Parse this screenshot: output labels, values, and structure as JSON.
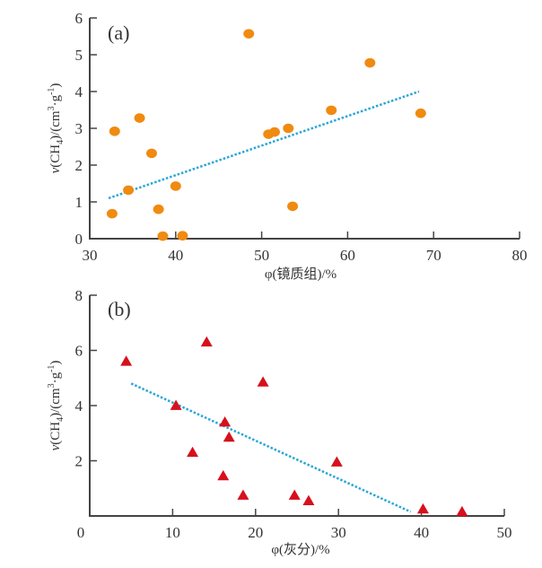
{
  "chart_data": [
    {
      "type": "scatter",
      "panel_label": "(a)",
      "xlabel": "φ(镜质组)/%",
      "ylabel": "v(CH4)/(cm3·g-1)",
      "ylabel_parts": {
        "v": "v",
        "open": "(CH",
        "sub": "4",
        "mid": ")/(cm",
        "sup1": "3",
        "dot": "·g",
        "sup2": "-1",
        "close": ")"
      },
      "xlim": [
        30,
        80
      ],
      "ylim": [
        0,
        6
      ],
      "xticks": [
        30,
        40,
        50,
        60,
        70,
        80
      ],
      "yticks": [
        0,
        1,
        2,
        3,
        4,
        5,
        6
      ],
      "grid": false,
      "marker": "circle",
      "marker_color": "#f08a10",
      "trend_color": "#2aa6d8",
      "points": [
        {
          "x": 32.6,
          "y": 0.68
        },
        {
          "x": 32.9,
          "y": 2.92
        },
        {
          "x": 34.5,
          "y": 1.32
        },
        {
          "x": 35.8,
          "y": 3.28
        },
        {
          "x": 37.2,
          "y": 2.32
        },
        {
          "x": 38.0,
          "y": 0.8
        },
        {
          "x": 38.5,
          "y": 0.07
        },
        {
          "x": 40.0,
          "y": 1.43
        },
        {
          "x": 40.8,
          "y": 0.08
        },
        {
          "x": 48.5,
          "y": 5.57
        },
        {
          "x": 50.8,
          "y": 2.84
        },
        {
          "x": 51.5,
          "y": 2.9
        },
        {
          "x": 53.1,
          "y": 3.0
        },
        {
          "x": 53.6,
          "y": 0.88
        },
        {
          "x": 58.1,
          "y": 3.49
        },
        {
          "x": 62.6,
          "y": 4.78
        },
        {
          "x": 68.5,
          "y": 3.41
        }
      ],
      "trendline": {
        "x": [
          32.2,
          68.3
        ],
        "y": [
          1.1,
          4.0
        ]
      }
    },
    {
      "type": "scatter",
      "panel_label": "(b)",
      "xlabel": "φ(灰分)/%",
      "ylabel": "v(CH4)/(cm3·g-1)",
      "ylabel_parts": {
        "v": "v",
        "open": "(CH",
        "sub": "4",
        "mid": ")/(cm",
        "sup1": "3",
        "dot": "·g",
        "sup2": "-1",
        "close": ")"
      },
      "xlim": [
        0,
        50
      ],
      "ylim": [
        0,
        8
      ],
      "xticks": [
        0,
        10,
        20,
        30,
        40,
        50
      ],
      "yticks": [
        0,
        2,
        4,
        6,
        8
      ],
      "grid": false,
      "marker": "triangle",
      "marker_color": "#d7101c",
      "trend_color": "#2aa6d8",
      "points": [
        {
          "x": 4.4,
          "y": 5.6
        },
        {
          "x": 10.4,
          "y": 4.0
        },
        {
          "x": 12.4,
          "y": 2.3
        },
        {
          "x": 14.1,
          "y": 6.3
        },
        {
          "x": 16.1,
          "y": 1.45
        },
        {
          "x": 16.3,
          "y": 3.4
        },
        {
          "x": 16.8,
          "y": 2.85
        },
        {
          "x": 18.5,
          "y": 0.75
        },
        {
          "x": 20.9,
          "y": 4.85
        },
        {
          "x": 24.7,
          "y": 0.75
        },
        {
          "x": 26.4,
          "y": 0.55
        },
        {
          "x": 29.8,
          "y": 1.95
        },
        {
          "x": 40.2,
          "y": 0.25
        },
        {
          "x": 44.9,
          "y": 0.15
        }
      ],
      "trendline": {
        "x": [
          5.0,
          38.7
        ],
        "y": [
          4.8,
          0.15
        ]
      }
    }
  ]
}
